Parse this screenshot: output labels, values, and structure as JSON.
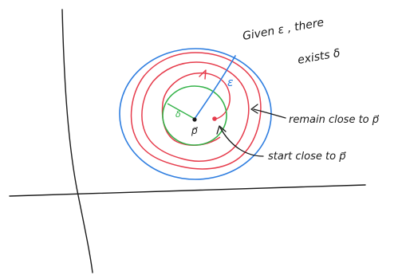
{
  "colors": {
    "ink": "#1a1a1a",
    "blue": "#2f7ee0",
    "red": "#e63c4c",
    "green": "#35b34a"
  },
  "annotations": {
    "given_line1": "Given ε , there",
    "given_line2": "exists δ",
    "epsilon_label": "ε",
    "delta_label": "δ",
    "point_label": "p⃗",
    "remain_text": "remain close to p⃗",
    "start_text": "start close to p⃗"
  }
}
